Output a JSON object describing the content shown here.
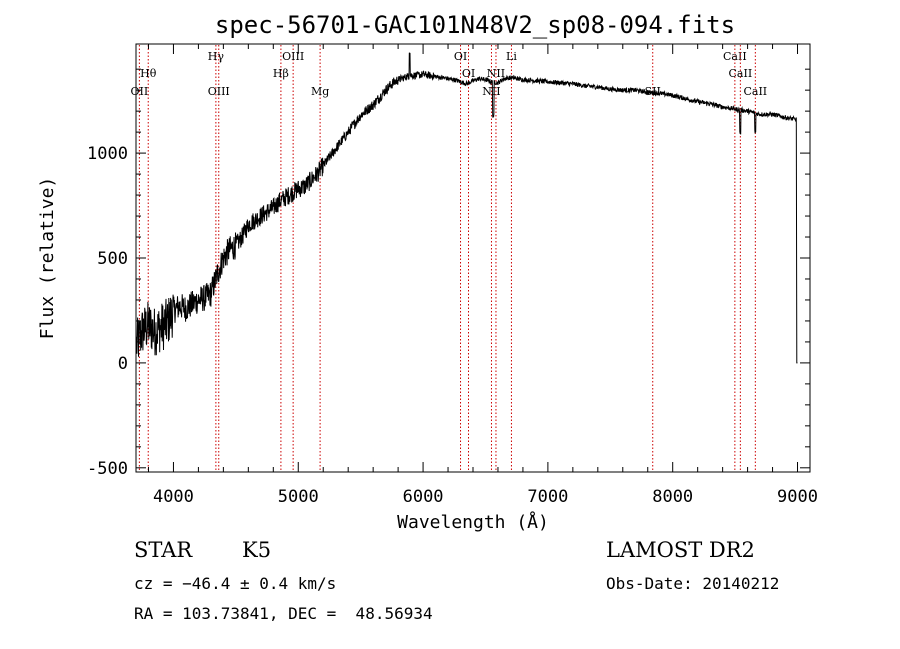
{
  "chart_data": {
    "type": "line",
    "title": "spec-56701-GAC101N48V2_sp08-094.fits",
    "xlabel": "Wavelength (Å)",
    "ylabel": "Flux (relative)",
    "xlim": [
      3700,
      9100
    ],
    "ylim": [
      -520,
      1520
    ],
    "xticks": [
      4000,
      5000,
      6000,
      7000,
      8000,
      9000
    ],
    "yticks": [
      -500,
      0,
      500,
      1000
    ],
    "grid": false,
    "spectrum_color": "#000000",
    "line_marker_color": "#cc0000",
    "series": [
      {
        "x": [
          3700,
          3750,
          3800,
          3850,
          3900,
          3950,
          4000,
          4050,
          4100,
          4150,
          4200,
          4250,
          4300,
          4350,
          4400,
          4450,
          4500,
          4550,
          4600,
          4650,
          4700,
          4750,
          4800,
          4850,
          4900,
          4950,
          5000,
          5050,
          5100,
          5150,
          5200,
          5300,
          5400,
          5500,
          5600,
          5700,
          5750,
          5800,
          5850,
          5900,
          5950,
          6000,
          6050,
          6100,
          6150,
          6200,
          6250,
          6300,
          6350,
          6400,
          6450,
          6500,
          6550,
          6600,
          6650,
          6700,
          6750,
          6800,
          6900,
          7000,
          7100,
          7200,
          7300,
          7400,
          7500,
          7600,
          7700,
          7800,
          7900,
          8000,
          8100,
          8200,
          8300,
          8400,
          8500,
          8600,
          8700,
          8800,
          8900,
          8990
        ],
        "y": [
          80,
          150,
          180,
          150,
          170,
          190,
          250,
          270,
          260,
          280,
          300,
          310,
          330,
          420,
          500,
          540,
          560,
          600,
          660,
          680,
          700,
          720,
          740,
          770,
          790,
          810,
          830,
          840,
          870,
          900,
          940,
          1020,
          1100,
          1180,
          1230,
          1300,
          1330,
          1350,
          1360,
          1370,
          1370,
          1375,
          1370,
          1365,
          1360,
          1355,
          1350,
          1340,
          1330,
          1345,
          1355,
          1350,
          1340,
          1335,
          1355,
          1360,
          1355,
          1350,
          1345,
          1340,
          1335,
          1330,
          1320,
          1315,
          1305,
          1300,
          1300,
          1290,
          1285,
          1275,
          1260,
          1245,
          1235,
          1220,
          1210,
          1200,
          1185,
          1185,
          1170,
          1160
        ]
      }
    ],
    "line_markers": [
      {
        "label": "OII",
        "x": 3727,
        "row": 3
      },
      {
        "label": "Hθ",
        "x": 3798,
        "row": 2
      },
      {
        "label": "Hγ",
        "x": 4340,
        "row": 1
      },
      {
        "label": "OIII",
        "x": 4363,
        "row": 3
      },
      {
        "label": "Hβ",
        "x": 4861,
        "row": 2
      },
      {
        "label": "OIII",
        "x": 4959,
        "row": 1
      },
      {
        "label": "Mg",
        "x": 5175,
        "row": 3
      },
      {
        "label": "OI",
        "x": 6300,
        "row": 1
      },
      {
        "label": "OI",
        "x": 6364,
        "row": 2
      },
      {
        "label": "NII",
        "x": 6548,
        "row": 3
      },
      {
        "label": "NII",
        "x": 6584,
        "row": 2
      },
      {
        "label": "Li",
        "x": 6708,
        "row": 1
      },
      {
        "label": "SII",
        "x": 7840,
        "row": 3
      },
      {
        "label": "CaII",
        "x": 8498,
        "row": 1
      },
      {
        "label": "CaII",
        "x": 8542,
        "row": 2
      },
      {
        "label": "CaII",
        "x": 8662,
        "row": 3
      }
    ]
  },
  "info": {
    "class": "STAR",
    "subclass": "K5",
    "survey": "LAMOST DR2",
    "cz": "cz = −46.4 ± 0.4 km/s",
    "obs_date": "Obs-Date: 20140212",
    "radec": "RA = 103.73841, DEC =  48.56934"
  }
}
